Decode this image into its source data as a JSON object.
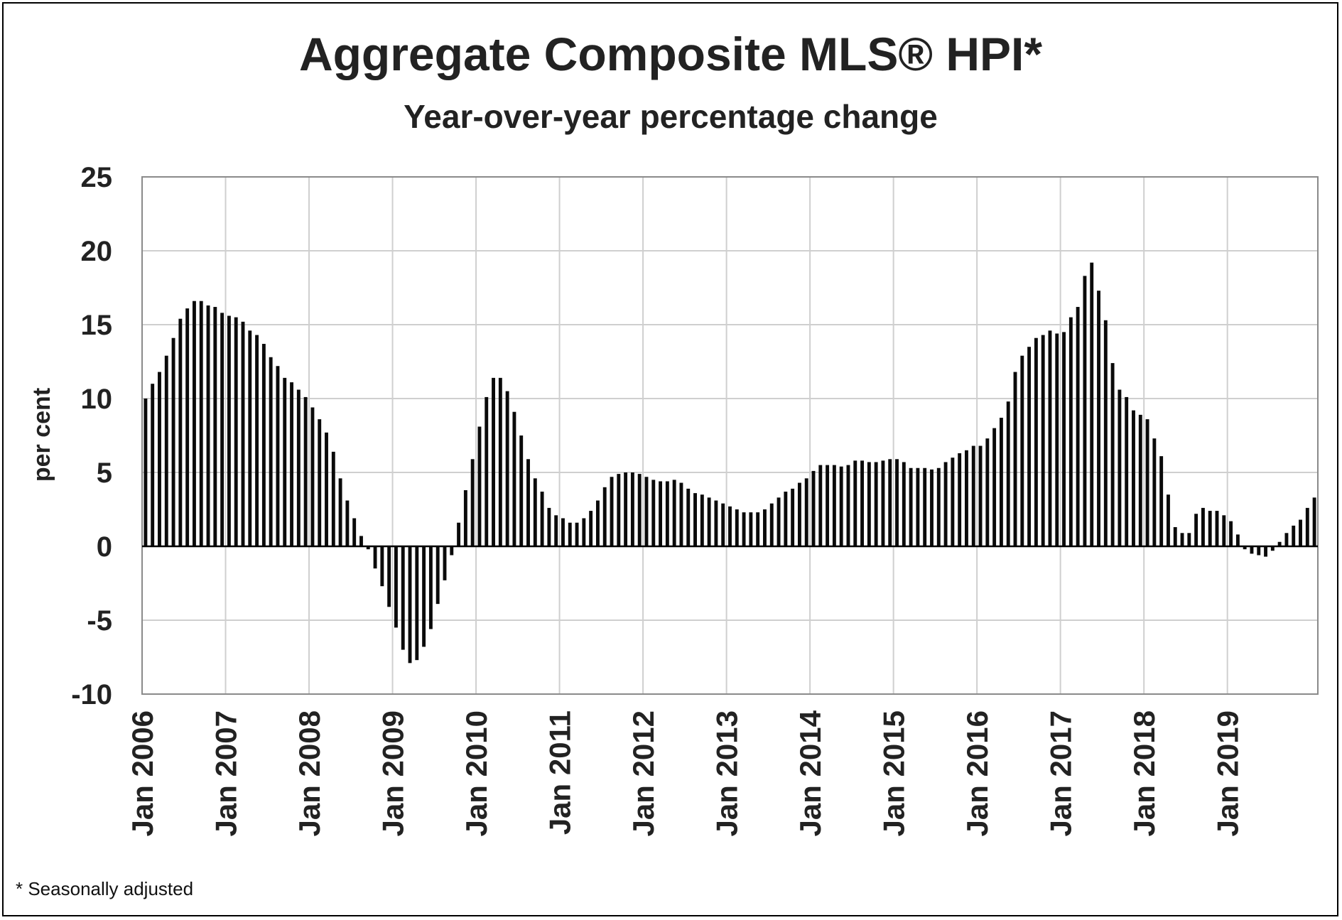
{
  "chart_data": {
    "type": "bar",
    "title": "Aggregate Composite MLS® HPI*",
    "subtitle": "Year-over-year percentage change",
    "ylabel": "per cent",
    "footnote": "* Seasonally adjusted",
    "ylim": [
      -10,
      25
    ],
    "yticks": [
      25,
      20,
      15,
      10,
      5,
      0,
      -5,
      -10
    ],
    "grid": true,
    "x_tick_labels": [
      "Jan 2006",
      "Jan 2007",
      "Jan 2008",
      "Jan 2009",
      "Jan 2010",
      "Jan 2011",
      "Jan 2012",
      "Jan 2013",
      "Jan 2014",
      "Jan 2015",
      "Jan 2016",
      "Jan 2017",
      "Jan 2018",
      "Jan 2019"
    ],
    "x_start": "2006-01",
    "x_end": "2019-12",
    "values": [
      10.0,
      11.0,
      11.8,
      12.9,
      14.1,
      15.4,
      16.1,
      16.6,
      16.6,
      16.3,
      16.2,
      15.8,
      15.6,
      15.5,
      15.2,
      14.6,
      14.3,
      13.7,
      12.8,
      12.2,
      11.4,
      11.1,
      10.6,
      10.1,
      9.4,
      8.6,
      7.7,
      6.4,
      4.6,
      3.1,
      1.9,
      0.7,
      -0.2,
      -1.5,
      -2.7,
      -4.1,
      -5.5,
      -7.0,
      -7.9,
      -7.7,
      -6.8,
      -5.6,
      -3.9,
      -2.3,
      -0.6,
      1.6,
      3.8,
      5.9,
      8.1,
      10.1,
      11.4,
      11.4,
      10.5,
      9.1,
      7.5,
      5.9,
      4.6,
      3.7,
      2.6,
      2.1,
      1.9,
      1.6,
      1.6,
      1.9,
      2.4,
      3.1,
      4.0,
      4.7,
      4.9,
      5.0,
      5.0,
      4.9,
      4.7,
      4.5,
      4.4,
      4.4,
      4.5,
      4.3,
      3.9,
      3.6,
      3.5,
      3.3,
      3.1,
      2.9,
      2.7,
      2.5,
      2.3,
      2.3,
      2.3,
      2.5,
      2.9,
      3.3,
      3.7,
      3.9,
      4.3,
      4.6,
      5.1,
      5.5,
      5.5,
      5.5,
      5.4,
      5.5,
      5.8,
      5.8,
      5.7,
      5.7,
      5.8,
      5.9,
      5.9,
      5.7,
      5.3,
      5.3,
      5.3,
      5.2,
      5.3,
      5.7,
      6.0,
      6.3,
      6.5,
      6.8,
      6.8,
      7.3,
      8.0,
      8.7,
      9.8,
      11.8,
      12.9,
      13.5,
      14.1,
      14.3,
      14.6,
      14.4,
      14.5,
      15.5,
      16.2,
      18.3,
      19.2,
      17.3,
      15.3,
      12.4,
      10.6,
      10.1,
      9.2,
      8.9,
      8.6,
      7.3,
      6.1,
      3.5,
      1.3,
      0.9,
      0.9,
      2.2,
      2.6,
      2.4,
      2.4,
      2.1,
      1.7,
      0.8,
      -0.2,
      -0.5,
      -0.6,
      -0.7,
      -0.3,
      0.3,
      0.9,
      1.4,
      1.8,
      2.6,
      3.3
    ]
  }
}
